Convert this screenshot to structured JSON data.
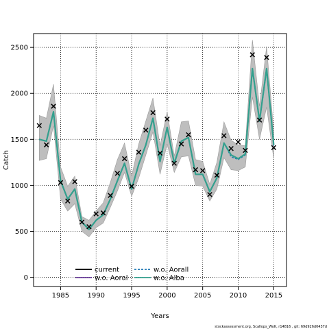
{
  "chart_data": {
    "type": "line",
    "xlabel": "Years",
    "ylabel": "Catch",
    "xlim": [
      1981.2,
      2016.8
    ],
    "ylim": [
      -100,
      2650
    ],
    "xticks": [
      1985,
      1990,
      1995,
      2000,
      2005,
      2010,
      2015
    ],
    "yticks": [
      0,
      500,
      1000,
      1500,
      2000,
      2500
    ],
    "grid": true,
    "grid_style": "dotted",
    "legend_position": "bottom-left",
    "colors": {
      "band": "#bebebe",
      "band_edge": "#9a9a9a",
      "current": "#000000",
      "wo_aoral": "#6a3d9a",
      "wo_aorall": "#1f78b4",
      "wo_alba": "#33a08e",
      "observed": "#000000"
    },
    "x": [
      1982,
      1983,
      1984,
      1985,
      1986,
      1987,
      1988,
      1989,
      1990,
      1991,
      1992,
      1993,
      1994,
      1995,
      1996,
      1997,
      1998,
      1999,
      2000,
      2001,
      2002,
      2003,
      2004,
      2005,
      2006,
      2007,
      2008,
      2009,
      2010,
      2011,
      2012,
      2013,
      2014,
      2015
    ],
    "observed_catch": [
      1650,
      1440,
      1860,
      1030,
      830,
      1040,
      600,
      550,
      690,
      700,
      890,
      1130,
      1290,
      990,
      1360,
      1600,
      1790,
      1350,
      1720,
      1240,
      1450,
      1550,
      1170,
      1160,
      900,
      1110,
      1540,
      1400,
      1470,
      1380,
      2420,
      1710,
      2390,
      1410
    ],
    "band_lower": [
      1270,
      1290,
      1650,
      850,
      720,
      800,
      500,
      440,
      540,
      590,
      760,
      940,
      1140,
      880,
      1080,
      1330,
      1580,
      1120,
      1450,
      1140,
      1310,
      1320,
      1000,
      990,
      830,
      960,
      1300,
      1170,
      1160,
      1200,
      1960,
      1500,
      1850,
      1290
    ],
    "band_upper": [
      1760,
      1730,
      2100,
      1200,
      990,
      1100,
      660,
      620,
      720,
      810,
      1030,
      1280,
      1460,
      1100,
      1450,
      1700,
      1950,
      1430,
      1800,
      1320,
      1690,
      1700,
      1280,
      1260,
      1010,
      1250,
      1690,
      1490,
      1440,
      1430,
      2580,
      1860,
      2510,
      1580
    ],
    "series": [
      {
        "name": "current",
        "key": "current",
        "values": [
          1500,
          1480,
          1800,
          1050,
          850,
          960,
          600,
          520,
          620,
          680,
          850,
          1050,
          1240,
          960,
          1230,
          1440,
          1730,
          1260,
          1630,
          1240,
          1480,
          1520,
          1120,
          1120,
          930,
          1080,
          1460,
          1330,
          1290,
          1340,
          2270,
          1700,
          2270,
          1440
        ]
      },
      {
        "name": "w.o. Aoral",
        "key": "wo_aoral",
        "values": [
          1500,
          1480,
          1800,
          1050,
          850,
          960,
          600,
          520,
          620,
          680,
          850,
          1050,
          1240,
          960,
          1230,
          1440,
          1730,
          1260,
          1630,
          1240,
          1480,
          1520,
          1120,
          1120,
          930,
          1080,
          1460,
          1330,
          1290,
          1340,
          2270,
          1700,
          2270,
          1440
        ]
      },
      {
        "name": "w.o. Aorall",
        "key": "wo_aorall",
        "values": [
          1500,
          1480,
          1800,
          1050,
          850,
          960,
          600,
          520,
          620,
          680,
          850,
          1050,
          1240,
          960,
          1230,
          1440,
          1730,
          1260,
          1630,
          1240,
          1480,
          1520,
          1120,
          1120,
          930,
          1080,
          1460,
          1310,
          1280,
          1330,
          2260,
          1690,
          2250,
          1430
        ]
      },
      {
        "name": "w.o. Alba",
        "key": "wo_alba",
        "values": [
          1500,
          1480,
          1800,
          1050,
          850,
          960,
          600,
          520,
          620,
          680,
          850,
          1050,
          1240,
          960,
          1230,
          1440,
          1730,
          1260,
          1630,
          1240,
          1480,
          1520,
          1120,
          1120,
          930,
          1080,
          1460,
          1330,
          1290,
          1340,
          2270,
          1700,
          2270,
          1440
        ]
      }
    ]
  },
  "legend": [
    {
      "label": "current",
      "key": "current",
      "dashed": false
    },
    {
      "label": "w.o. Aoral",
      "key": "wo_aoral",
      "dashed": false
    },
    {
      "label": "w.o. Aorall",
      "key": "wo_aorall",
      "dashed": true
    },
    {
      "label": "w.o. Alba",
      "key": "wo_alba",
      "dashed": false
    }
  ],
  "footer": "stockassessment.org, Scallops_WoK, r14816 , git: 69d926d0437d"
}
